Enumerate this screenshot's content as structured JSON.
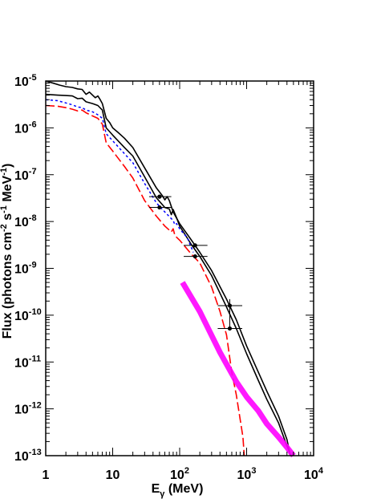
{
  "chart_data": {
    "type": "line",
    "title": "",
    "xlabel": {
      "main": "E",
      "sub": "γ",
      "unit": " (MeV)"
    },
    "ylabel": {
      "a": "Flux (photons cm",
      "b": "-2",
      "c": " s",
      "d": "-1",
      "e": " MeV",
      "f": "-1",
      "g": ")"
    },
    "x_scale": "log",
    "y_scale": "log",
    "xlim": [
      1,
      10000
    ],
    "ylim": [
      1e-13,
      1e-05
    ],
    "x_ticks": [
      {
        "value": 1,
        "base": "1",
        "exp": ""
      },
      {
        "value": 10,
        "base": "10",
        "exp": ""
      },
      {
        "value": 100,
        "base": "10",
        "exp": "2"
      },
      {
        "value": 1000,
        "base": "10",
        "exp": "3"
      },
      {
        "value": 10000,
        "base": "10",
        "exp": "4"
      }
    ],
    "y_ticks": [
      {
        "value": 1e-13,
        "base": "10",
        "exp": "-13"
      },
      {
        "value": 1e-12,
        "base": "10",
        "exp": "-12"
      },
      {
        "value": 1e-11,
        "base": "10",
        "exp": "-11"
      },
      {
        "value": 1e-10,
        "base": "10",
        "exp": "-10"
      },
      {
        "value": 1e-09,
        "base": "10",
        "exp": "-9"
      },
      {
        "value": 1e-08,
        "base": "10",
        "exp": "-8"
      },
      {
        "value": 1e-07,
        "base": "10",
        "exp": "-7"
      },
      {
        "value": 1e-06,
        "base": "10",
        "exp": "-6"
      },
      {
        "value": 1e-05,
        "base": "10",
        "exp": "-5"
      }
    ],
    "grid": false,
    "legend": "none",
    "series": [
      {
        "style": "solid",
        "color": "#000000",
        "points": [
          [
            1,
            1e-05
          ],
          [
            1.3,
            9e-06
          ],
          [
            1.6,
            8.2e-06
          ],
          [
            2,
            7.6e-06
          ],
          [
            2.5,
            7.3e-06
          ],
          [
            3,
            6.8e-06
          ],
          [
            3.5,
            6.6e-06
          ],
          [
            4,
            5.2e-06
          ],
          [
            4.5,
            5.8e-06
          ],
          [
            5,
            5e-06
          ],
          [
            5.5,
            4.4e-06
          ],
          [
            6,
            4.8e-06
          ],
          [
            6.5,
            4e-06
          ],
          [
            7,
            3.3e-06
          ],
          [
            8,
            1.6e-06
          ],
          [
            9,
            1.3e-06
          ],
          [
            10,
            1e-06
          ],
          [
            12,
            8e-07
          ],
          [
            15,
            6e-07
          ],
          [
            20,
            3.8e-07
          ],
          [
            30,
            1.4e-07
          ],
          [
            45,
            5.2e-08
          ],
          [
            55,
            3.6e-08
          ],
          [
            60,
            2.9e-08
          ],
          [
            65,
            3.4e-08
          ],
          [
            70,
            2.8e-08
          ],
          [
            80,
            1.6e-08
          ],
          [
            100,
            9e-09
          ],
          [
            150,
            4e-09
          ],
          [
            200,
            2.2e-09
          ],
          [
            300,
            9e-10
          ],
          [
            500,
            2.2e-10
          ],
          [
            700,
            8e-11
          ],
          [
            1000,
            2.2e-11
          ],
          [
            1500,
            6e-12
          ],
          [
            2000,
            2.4e-12
          ],
          [
            3000,
            7e-13
          ],
          [
            4000,
            2.2e-13
          ],
          [
            4500,
            1e-13
          ]
        ]
      },
      {
        "style": "solid",
        "color": "#000000",
        "points": [
          [
            1,
            5.2e-06
          ],
          [
            1.5,
            5e-06
          ],
          [
            2,
            4.9e-06
          ],
          [
            2.5,
            4.8e-06
          ],
          [
            3,
            4.2e-06
          ],
          [
            3.5,
            4.3e-06
          ],
          [
            4,
            3.6e-06
          ],
          [
            5,
            3.3e-06
          ],
          [
            6,
            3e-06
          ],
          [
            7,
            2.4e-06
          ],
          [
            8,
            1e-06
          ],
          [
            10,
            7e-07
          ],
          [
            15,
            3.8e-07
          ],
          [
            20,
            2.5e-07
          ],
          [
            30,
            9e-08
          ],
          [
            45,
            3.2e-08
          ],
          [
            60,
            2e-08
          ],
          [
            70,
            1.85e-08
          ],
          [
            75,
            1.4e-08
          ],
          [
            80,
            1.8e-08
          ],
          [
            90,
            1.2e-08
          ],
          [
            100,
            8e-09
          ],
          [
            150,
            3.2e-09
          ],
          [
            200,
            1.8e-09
          ],
          [
            300,
            7e-10
          ],
          [
            500,
            1.5e-10
          ],
          [
            700,
            5.2e-11
          ],
          [
            1000,
            1.5e-11
          ],
          [
            1500,
            4e-12
          ],
          [
            2000,
            1.6e-12
          ],
          [
            3000,
            5e-13
          ],
          [
            4000,
            1.6e-13
          ],
          [
            4600,
            1e-13
          ]
        ]
      },
      {
        "style": "dotted",
        "color": "#0000ff",
        "points": [
          [
            1,
            4e-06
          ],
          [
            1.5,
            3.8e-06
          ],
          [
            2,
            3.4e-06
          ],
          [
            2.5,
            3.1e-06
          ],
          [
            3,
            2.8e-06
          ],
          [
            3.5,
            2.7e-06
          ],
          [
            4,
            2.4e-06
          ],
          [
            5,
            2.2e-06
          ],
          [
            6,
            1.9e-06
          ],
          [
            7,
            1.6e-06
          ],
          [
            8,
            7.5e-07
          ],
          [
            10,
            5.3e-07
          ],
          [
            15,
            2.8e-07
          ],
          [
            20,
            1.8e-07
          ],
          [
            30,
            6.5e-08
          ],
          [
            45,
            2.5e-08
          ],
          [
            60,
            1.6e-08
          ],
          [
            80,
            1.05e-08
          ],
          [
            85,
            8.5e-09
          ],
          [
            90,
            9e-09
          ],
          [
            100,
            7e-09
          ],
          [
            130,
            4.5e-09
          ],
          [
            160,
            2.2e-09
          ]
        ]
      },
      {
        "style": "dashed",
        "color": "#ff0000",
        "points": [
          [
            1,
            3e-06
          ],
          [
            1.5,
            2.9e-06
          ],
          [
            2,
            2.7e-06
          ],
          [
            2.5,
            2.5e-06
          ],
          [
            3,
            2.3e-06
          ],
          [
            3.5,
            2.4e-06
          ],
          [
            4,
            2.1e-06
          ],
          [
            5,
            1.8e-06
          ],
          [
            6,
            1.6e-06
          ],
          [
            7,
            1.2e-06
          ],
          [
            8,
            4.8e-07
          ],
          [
            10,
            3.2e-07
          ],
          [
            15,
            1.5e-07
          ],
          [
            20,
            8.5e-08
          ],
          [
            30,
            2.8e-08
          ],
          [
            45,
            1.3e-08
          ],
          [
            60,
            8e-09
          ],
          [
            75,
            6e-09
          ],
          [
            80,
            7e-09
          ],
          [
            85,
            5e-09
          ],
          [
            100,
            4e-09
          ],
          [
            150,
            2e-09
          ],
          [
            200,
            1.3e-09
          ],
          [
            300,
            4e-10
          ],
          [
            400,
            1.2e-10
          ],
          [
            500,
            3.8e-11
          ],
          [
            600,
            6e-12
          ],
          [
            700,
            2e-12
          ],
          [
            800,
            6e-13
          ],
          [
            880,
            2.5e-13
          ],
          [
            920,
            1e-13
          ]
        ]
      },
      {
        "style": "thick",
        "color": "#ff00ff",
        "points": [
          [
            110,
            5e-10
          ],
          [
            200,
            1.2e-10
          ],
          [
            400,
            1.6e-11
          ],
          [
            700,
            3.8e-12
          ],
          [
            1000,
            1.8e-12
          ],
          [
            1500,
            9e-13
          ],
          [
            2000,
            4.8e-13
          ],
          [
            3000,
            2.5e-13
          ],
          [
            4000,
            1.5e-13
          ],
          [
            5000,
            1e-13
          ]
        ]
      }
    ],
    "data_points": [
      {
        "x": 50,
        "y": 3.4e-08,
        "xerr": [
          35,
          75
        ],
        "yerr": [
          null,
          null
        ]
      },
      {
        "x": 50,
        "y": 2e-08,
        "xerr": [
          35,
          75
        ],
        "yerr": [
          null,
          null
        ]
      },
      {
        "x": 170,
        "y": 3.1e-09,
        "xerr": [
          115,
          260
        ],
        "yerr": [
          null,
          null
        ]
      },
      {
        "x": 170,
        "y": 1.8e-09,
        "xerr": [
          115,
          260
        ],
        "yerr": [
          null,
          null
        ]
      },
      {
        "x": 560,
        "y": 1.6e-10,
        "xerr": [
          370,
          860
        ],
        "yerr": [
          5.5e-11,
          2.2e-10
        ]
      },
      {
        "x": 560,
        "y": 5.2e-11,
        "xerr": [
          370,
          860
        ],
        "yerr": [
          null,
          null
        ]
      }
    ]
  }
}
